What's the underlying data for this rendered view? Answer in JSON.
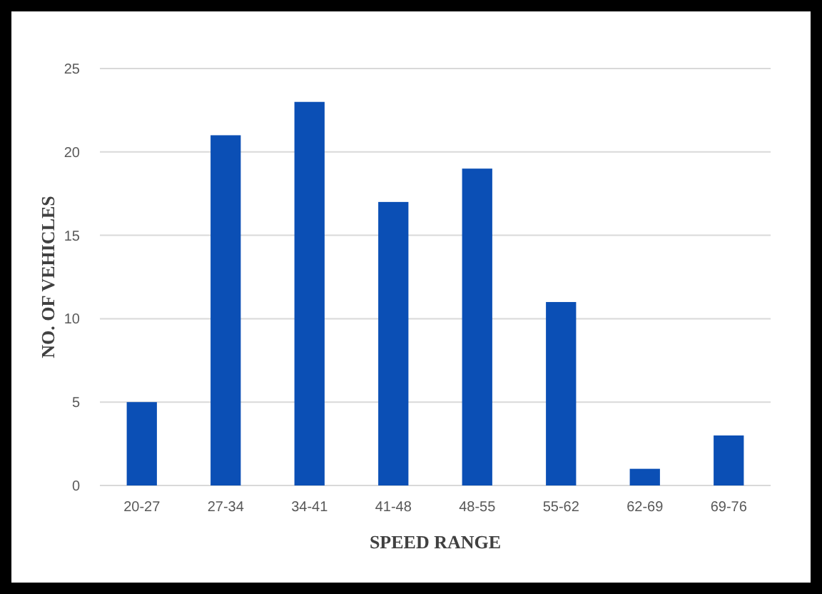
{
  "chart_data": {
    "type": "bar",
    "xlabel": "SPEED RANGE",
    "ylabel": "NO. OF VEHICLES",
    "categories": [
      "20-27",
      "27-34",
      "34-41",
      "41-48",
      "48-55",
      "55-62",
      "62-69",
      "69-76"
    ],
    "values": [
      5,
      21,
      23,
      17,
      19,
      11,
      1,
      3
    ],
    "color": "#0b4fb5",
    "ylim": [
      0,
      25
    ],
    "yticks": [
      0,
      5,
      10,
      15,
      20,
      25
    ],
    "grid": "y"
  }
}
